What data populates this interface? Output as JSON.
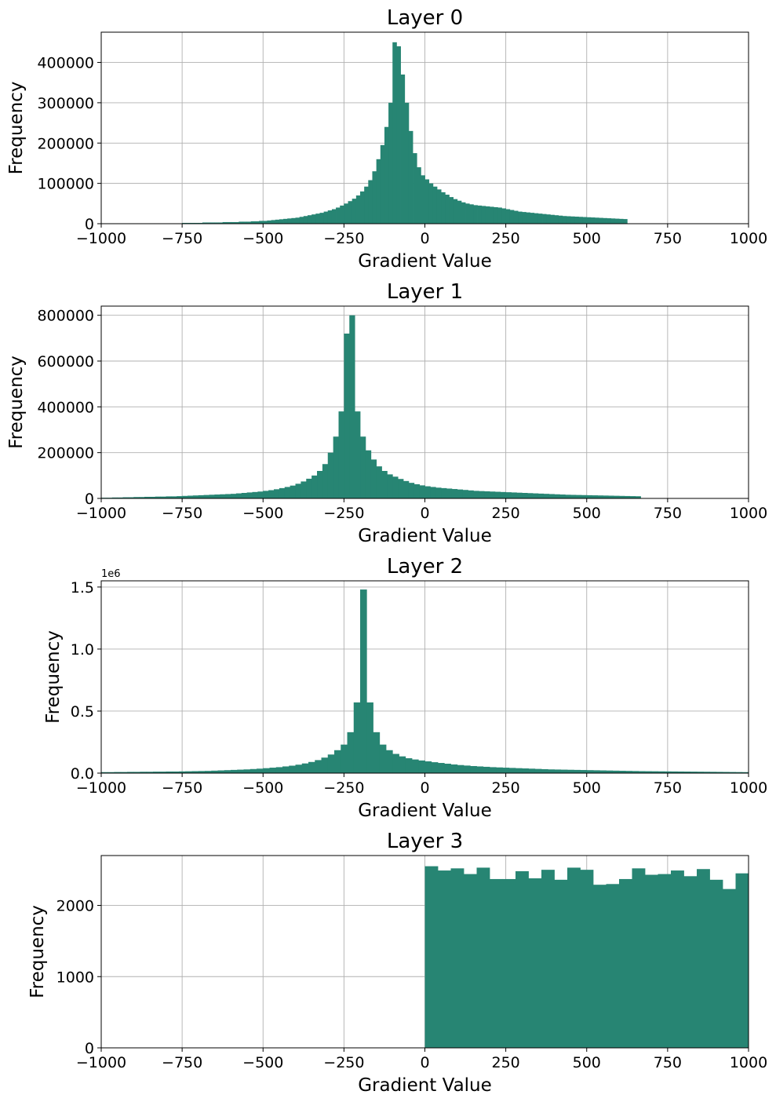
{
  "bar_color": "#278573",
  "grid_color": "#b0b0b0",
  "chart_data": [
    {
      "type": "bar",
      "title": "Layer 0",
      "xlabel": "Gradient Value",
      "ylabel": "Frequency",
      "xlim": [
        -1000,
        1000
      ],
      "ylim": [
        0,
        475000
      ],
      "xticks": [
        -1000,
        -750,
        -500,
        -250,
        0,
        250,
        500,
        750,
        1000
      ],
      "xtick_labels": [
        "−1000",
        "−750",
        "−500",
        "−250",
        "0",
        "250",
        "500",
        "750",
        "1000"
      ],
      "yticks": [
        0,
        100000,
        200000,
        300000,
        400000
      ],
      "ytick_labels": [
        "0",
        "100000",
        "200000",
        "300000",
        "400000"
      ],
      "offset_label": "",
      "grid": true,
      "bin_start": -1000,
      "bin_width": 12.5,
      "values": [
        1000,
        1000,
        1000,
        1000,
        1000,
        1000,
        1000,
        1000,
        1000,
        1000,
        1000,
        1000,
        1000,
        1000,
        1000,
        1000,
        1000,
        1000,
        1000,
        1000,
        2000,
        2000,
        2000,
        2000,
        2000,
        3000,
        3000,
        3000,
        3000,
        3000,
        4000,
        4000,
        4000,
        4000,
        5000,
        5000,
        5000,
        6000,
        6000,
        7000,
        7000,
        8000,
        9000,
        10000,
        11000,
        12000,
        13000,
        14000,
        15000,
        17000,
        19000,
        21000,
        23000,
        25000,
        27000,
        30000,
        33000,
        36000,
        40000,
        45000,
        50000,
        56000,
        62000,
        70000,
        80000,
        92000,
        108000,
        130000,
        160000,
        195000,
        240000,
        300000,
        450000,
        440000,
        370000,
        300000,
        230000,
        175000,
        140000,
        120000,
        110000,
        100000,
        92000,
        85000,
        78000,
        72000,
        66000,
        61000,
        57000,
        53000,
        50000,
        48000,
        46000,
        45000,
        44000,
        43000,
        42000,
        41000,
        40000,
        38000,
        36000,
        34000,
        32000,
        30000,
        29000,
        28000,
        27000,
        26000,
        25000,
        24000,
        23000,
        22000,
        21000,
        20000,
        19000,
        18500,
        18000,
        17500,
        17000,
        16500,
        16000,
        15500,
        15000,
        14500,
        14000,
        13500,
        13000,
        12500,
        12000,
        11500
      ]
    },
    {
      "type": "bar",
      "title": "Layer 1",
      "xlabel": "Gradient Value",
      "ylabel": "Frequency",
      "xlim": [
        -1000,
        1000
      ],
      "ylim": [
        0,
        840000
      ],
      "xticks": [
        -1000,
        -750,
        -500,
        -250,
        0,
        250,
        500,
        750,
        1000
      ],
      "xtick_labels": [
        "−1000",
        "−750",
        "−500",
        "−250",
        "0",
        "250",
        "500",
        "750",
        "1000"
      ],
      "yticks": [
        0,
        200000,
        400000,
        600000,
        800000
      ],
      "ytick_labels": [
        "0",
        "200000",
        "400000",
        "600000",
        "800000"
      ],
      "offset_label": "",
      "grid": true,
      "bin_start": -1000,
      "bin_width": 16.667,
      "values": [
        3000,
        3000,
        4000,
        4000,
        5000,
        5000,
        6000,
        6000,
        7000,
        7000,
        8000,
        8000,
        9000,
        9000,
        10000,
        11000,
        12000,
        13000,
        14000,
        15000,
        16000,
        17000,
        18000,
        19000,
        20000,
        22000,
        24000,
        26000,
        28000,
        30000,
        33000,
        36000,
        40000,
        45000,
        50000,
        56000,
        64000,
        74000,
        86000,
        100000,
        120000,
        150000,
        200000,
        270000,
        380000,
        720000,
        800000,
        380000,
        270000,
        210000,
        170000,
        140000,
        120000,
        105000,
        95000,
        85000,
        76000,
        68000,
        62000,
        57000,
        53000,
        50000,
        47000,
        45000,
        43000,
        41000,
        39000,
        37000,
        35000,
        33000,
        32000,
        31000,
        30000,
        29000,
        28000,
        27000,
        26000,
        25000,
        24000,
        23000,
        22000,
        21000,
        20000,
        19000,
        18000,
        17000,
        16000,
        15500,
        15000,
        14500,
        14000,
        13500,
        13000,
        12500,
        12000,
        11500,
        11000,
        10500,
        10000,
        9500
      ]
    },
    {
      "type": "bar",
      "title": "Layer 2",
      "xlabel": "Gradient Value",
      "ylabel": "Frequency",
      "xlim": [
        -1000,
        1000
      ],
      "ylim": [
        0,
        1550000
      ],
      "xticks": [
        -1000,
        -750,
        -500,
        -250,
        0,
        250,
        500,
        750,
        1000
      ],
      "xtick_labels": [
        "−1000",
        "−750",
        "−500",
        "−250",
        "0",
        "250",
        "500",
        "750",
        "1000"
      ],
      "yticks": [
        0,
        500000,
        1000000,
        1500000
      ],
      "ytick_labels": [
        "0.0",
        "0.5",
        "1.0",
        "1.5"
      ],
      "offset_label": "1e6",
      "grid": true,
      "bin_start": -1000,
      "bin_width": 20,
      "values": [
        8000,
        8000,
        9000,
        9000,
        10000,
        10000,
        11000,
        11000,
        12000,
        12000,
        13000,
        13000,
        14000,
        15000,
        16000,
        17000,
        18000,
        20000,
        22000,
        24000,
        26000,
        28000,
        30000,
        33000,
        36000,
        40000,
        44000,
        48000,
        54000,
        60000,
        68000,
        78000,
        90000,
        105000,
        125000,
        150000,
        185000,
        230000,
        330000,
        570000,
        1480000,
        570000,
        330000,
        230000,
        185000,
        155000,
        135000,
        120000,
        110000,
        102000,
        95000,
        88000,
        82000,
        76000,
        70000,
        65000,
        61000,
        57000,
        54000,
        51000,
        48000,
        46000,
        44000,
        42000,
        40000,
        38000,
        36000,
        34000,
        32000,
        30000,
        29000,
        28000,
        27000,
        26000,
        25000,
        24000,
        23000,
        22000,
        21000,
        20000,
        19000,
        18000,
        17000,
        16000,
        15500,
        15000,
        14500,
        14000,
        13500,
        13000,
        12500,
        12000,
        11500,
        11000,
        10500,
        10000,
        9500,
        9000,
        8500,
        8000
      ]
    },
    {
      "type": "bar",
      "title": "Layer 3",
      "xlabel": "Gradient Value",
      "ylabel": "Frequency",
      "xlim": [
        -1000,
        1000
      ],
      "ylim": [
        0,
        2700
      ],
      "xticks": [
        -1000,
        -750,
        -500,
        -250,
        0,
        250,
        500,
        750,
        1000
      ],
      "xtick_labels": [
        "−1000",
        "−750",
        "−500",
        "−250",
        "0",
        "250",
        "500",
        "750",
        "1000"
      ],
      "yticks": [
        0,
        1000,
        2000
      ],
      "ytick_labels": [
        "0",
        "1000",
        "2000"
      ],
      "offset_label": "",
      "grid": true,
      "bin_start": 0,
      "bin_width": 40,
      "values": [
        2550,
        2490,
        2520,
        2440,
        2530,
        2370,
        2370,
        2480,
        2380,
        2500,
        2360,
        2530,
        2500,
        2290,
        2300,
        2370,
        2520,
        2430,
        2440,
        2490,
        2410,
        2510,
        2360,
        2230,
        2450
      ]
    }
  ]
}
